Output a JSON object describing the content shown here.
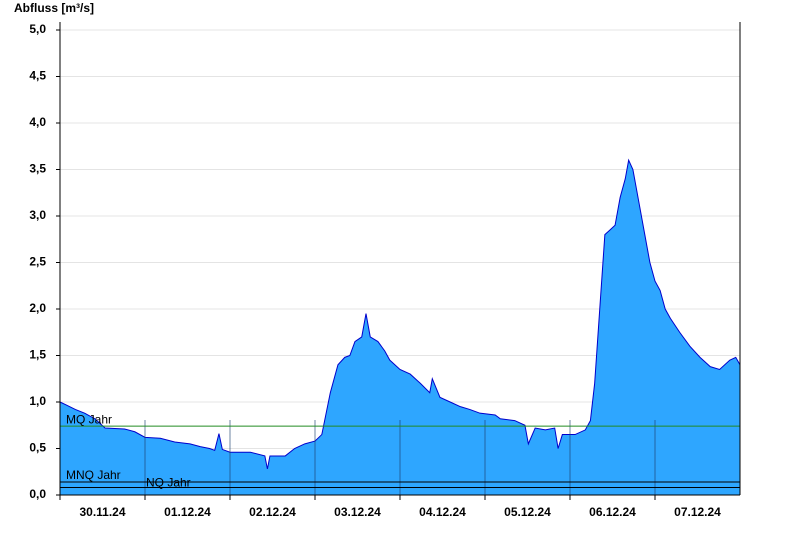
{
  "chart_data": {
    "type": "area",
    "ylabel": "Abfluss [m³/s]",
    "x": [
      0,
      0.07,
      0.18,
      0.29,
      0.41,
      0.53,
      0.76,
      0.88,
      1,
      1.18,
      1.35,
      1.53,
      1.65,
      1.76,
      1.82,
      1.87,
      1.91,
      2,
      2.24,
      2.41,
      2.44,
      2.47,
      2.65,
      2.76,
      2.88,
      3,
      3.08,
      3.18,
      3.27,
      3.35,
      3.41,
      3.47,
      3.55,
      3.6,
      3.65,
      3.74,
      3.82,
      3.88,
      4,
      4.12,
      4.24,
      4.35,
      4.38,
      4.47,
      4.59,
      4.71,
      4.82,
      4.94,
      5.12,
      5.18,
      5.35,
      5.47,
      5.51,
      5.59,
      5.71,
      5.82,
      5.86,
      5.91,
      6.06,
      6.18,
      6.24,
      6.29,
      6.35,
      6.41,
      6.47,
      6.53,
      6.59,
      6.65,
      6.69,
      6.74,
      6.82,
      6.88,
      6.94,
      7,
      7.06,
      7.12,
      7.18,
      7.29,
      7.41,
      7.53,
      7.65,
      7.76,
      7.88,
      7.95,
      8
    ],
    "series": [
      {
        "name": "Abfluss",
        "color": "#2ea6ff",
        "line_color": "#0000cc",
        "values": [
          1.0,
          0.97,
          0.92,
          0.88,
          0.82,
          0.72,
          0.71,
          0.68,
          0.62,
          0.61,
          0.57,
          0.55,
          0.52,
          0.5,
          0.48,
          0.66,
          0.49,
          0.46,
          0.46,
          0.42,
          0.28,
          0.42,
          0.42,
          0.5,
          0.55,
          0.58,
          0.65,
          1.1,
          1.4,
          1.48,
          1.5,
          1.65,
          1.7,
          1.95,
          1.7,
          1.65,
          1.55,
          1.45,
          1.35,
          1.3,
          1.2,
          1.1,
          1.25,
          1.05,
          1.0,
          0.95,
          0.92,
          0.88,
          0.86,
          0.82,
          0.8,
          0.75,
          0.55,
          0.72,
          0.7,
          0.72,
          0.5,
          0.65,
          0.65,
          0.7,
          0.8,
          1.2,
          2.0,
          2.8,
          2.85,
          2.9,
          3.2,
          3.4,
          3.6,
          3.5,
          3.1,
          2.8,
          2.5,
          2.3,
          2.2,
          2.0,
          1.9,
          1.75,
          1.6,
          1.48,
          1.38,
          1.35,
          1.45,
          1.48,
          1.4
        ]
      }
    ],
    "reference_lines": [
      {
        "name": "MQ Jahr",
        "value": 0.74,
        "color": "#228b22"
      },
      {
        "name": "MNQ Jahr",
        "value": 0.14,
        "color": "#000000"
      },
      {
        "name": "NQ Jahr",
        "value": 0.08,
        "color": "#000000"
      }
    ],
    "xlim": [
      0,
      8
    ],
    "xticks": [
      {
        "value": 0.5,
        "label": "30.11.24"
      },
      {
        "value": 1.5,
        "label": "01.12.24"
      },
      {
        "value": 2.5,
        "label": "02.12.24"
      },
      {
        "value": 3.5,
        "label": "03.12.24"
      },
      {
        "value": 4.5,
        "label": "04.12.24"
      },
      {
        "value": 5.5,
        "label": "05.12.24"
      },
      {
        "value": 6.5,
        "label": "06.12.24"
      },
      {
        "value": 7.5,
        "label": "07.12.24"
      }
    ],
    "ylim": [
      0,
      5
    ],
    "yticks": [
      {
        "value": 0,
        "label": "0,0"
      },
      {
        "value": 0.5,
        "label": "0,5"
      },
      {
        "value": 1,
        "label": "1,0"
      },
      {
        "value": 1.5,
        "label": "1,5"
      },
      {
        "value": 2,
        "label": "2,0"
      },
      {
        "value": 2.5,
        "label": "2,5"
      },
      {
        "value": 3,
        "label": "3,0"
      },
      {
        "value": 3.5,
        "label": "3,5"
      },
      {
        "value": 4,
        "label": "4,0"
      },
      {
        "value": 4.5,
        "label": "4,5"
      },
      {
        "value": 5,
        "label": "5,0"
      }
    ],
    "grid": true
  }
}
